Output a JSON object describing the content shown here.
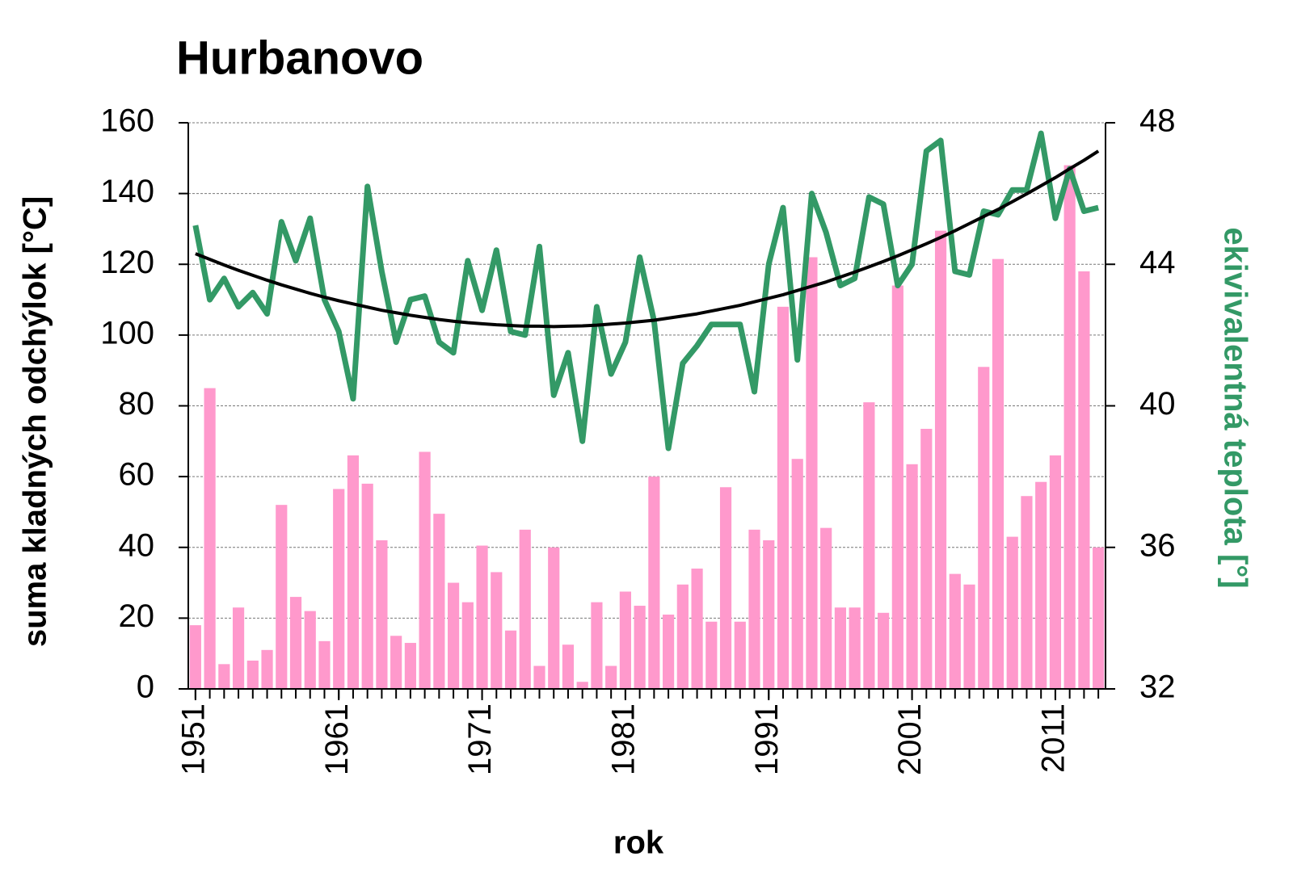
{
  "chart_data": {
    "type": "bar",
    "title": "Hurbanovo",
    "xlabel": "rok",
    "ylabel": "suma kladných odchýlok [°C]",
    "y2label": "ekivivalentná teplota [°]",
    "x": [
      1951,
      1952,
      1953,
      1954,
      1955,
      1956,
      1957,
      1958,
      1959,
      1960,
      1961,
      1962,
      1963,
      1964,
      1965,
      1966,
      1967,
      1968,
      1969,
      1970,
      1971,
      1972,
      1973,
      1974,
      1975,
      1976,
      1977,
      1978,
      1979,
      1980,
      1981,
      1982,
      1983,
      1984,
      1985,
      1986,
      1987,
      1988,
      1989,
      1990,
      1991,
      1992,
      1993,
      1994,
      1995,
      1996,
      1997,
      1998,
      1999,
      2000,
      2001,
      2002,
      2003,
      2004,
      2005,
      2006,
      2007,
      2008,
      2009,
      2010,
      2011,
      2012,
      2013,
      2014
    ],
    "xlim": [
      1950.5,
      2014.5
    ],
    "xticks": [
      1951,
      1961,
      1971,
      1981,
      1991,
      2001,
      2011
    ],
    "ylim": [
      0,
      160
    ],
    "yticks": [
      0,
      20,
      40,
      60,
      80,
      100,
      120,
      140,
      160
    ],
    "y2lim": [
      32,
      48
    ],
    "y2ticks": [
      32,
      36,
      40,
      44,
      48
    ],
    "grid": true,
    "series": [
      {
        "type": "bar",
        "color": "#ff99cc",
        "values": [
          18,
          85,
          7,
          23,
          8,
          11,
          52,
          26,
          22,
          13.5,
          56.5,
          66,
          58,
          42,
          15,
          13,
          67,
          49.5,
          30,
          24.5,
          40.5,
          33,
          16.5,
          45,
          6.5,
          40,
          12.5,
          2,
          24.5,
          6.5,
          27.5,
          23.5,
          60,
          21,
          29.5,
          34,
          19,
          57,
          19,
          45,
          42,
          108,
          65,
          122,
          45.5,
          23,
          23,
          81,
          21.5,
          114,
          63.5,
          73.5,
          129.5,
          32.5,
          29.5,
          91,
          121.5,
          43,
          54.5,
          58.5,
          66,
          148,
          118,
          40
        ]
      },
      {
        "type": "line",
        "axis": "y2",
        "color": "#339966",
        "values": [
          45.1,
          43.0,
          43.6,
          42.8,
          43.2,
          42.6,
          45.2,
          44.1,
          45.3,
          43.0,
          42.1,
          40.2,
          46.2,
          43.8,
          41.8,
          43.0,
          43.1,
          41.8,
          41.5,
          44.1,
          42.7,
          44.4,
          42.1,
          42.0,
          44.5,
          40.3,
          41.5,
          39.0,
          42.8,
          40.9,
          41.8,
          44.2,
          42.4,
          38.8,
          41.2,
          41.7,
          42.3,
          42.3,
          42.3,
          40.4,
          44.0,
          45.6,
          41.3,
          46.0,
          44.9,
          43.4,
          43.6,
          45.9,
          45.7,
          43.4,
          44.0,
          47.2,
          47.5,
          43.8,
          43.7,
          45.5,
          45.4,
          46.1,
          46.1,
          47.7,
          45.3,
          46.7,
          45.5,
          45.6
        ]
      },
      {
        "type": "line",
        "axis": "y2",
        "color": "#000000",
        "values": [
          44.3,
          44.14,
          43.98,
          43.83,
          43.69,
          43.55,
          43.42,
          43.3,
          43.18,
          43.07,
          42.97,
          42.88,
          42.79,
          42.7,
          42.63,
          42.56,
          42.5,
          42.44,
          42.39,
          42.35,
          42.32,
          42.29,
          42.27,
          42.25,
          42.25,
          42.24,
          42.25,
          42.26,
          42.28,
          42.31,
          42.34,
          42.38,
          42.42,
          42.48,
          42.54,
          42.6,
          42.68,
          42.76,
          42.84,
          42.94,
          43.04,
          43.14,
          43.26,
          43.38,
          43.5,
          43.64,
          43.78,
          43.93,
          44.08,
          44.24,
          44.41,
          44.58,
          44.76,
          44.95,
          45.15,
          45.35,
          45.55,
          45.77,
          45.99,
          46.22,
          46.45,
          46.7,
          46.94,
          47.2
        ]
      }
    ]
  }
}
